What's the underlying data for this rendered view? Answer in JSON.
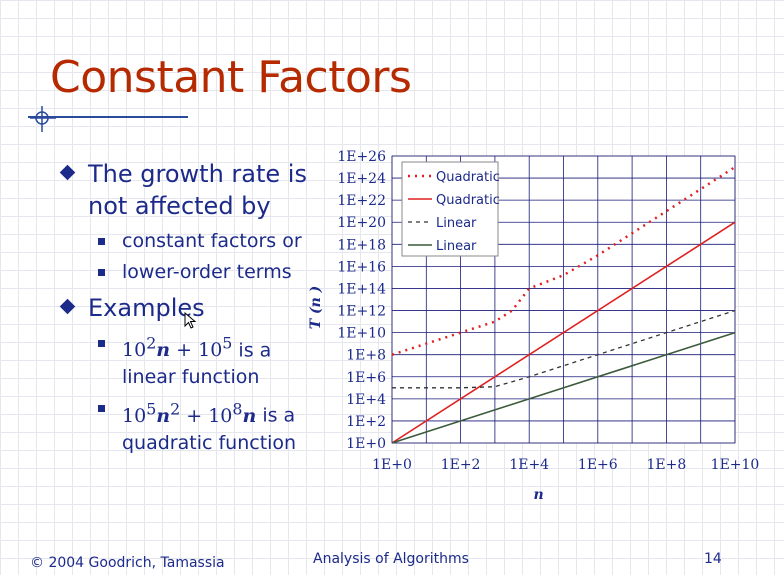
{
  "slide": {
    "title": "Constant Factors",
    "bullets": [
      {
        "text": "The growth rate is not affected by",
        "sub": [
          "constant factors or",
          "lower-order terms"
        ]
      },
      {
        "text": "Examples",
        "sub": []
      }
    ],
    "example1": {
      "base": "10",
      "exp1": "2",
      "var": "n",
      "plus": "+",
      "base2": "10",
      "exp2": "5",
      "rest": "is a linear function"
    },
    "example2": {
      "base": "10",
      "exp1": "5",
      "var": "n",
      "sq": "2",
      "plus": "+",
      "base2": "10",
      "exp2": "8",
      "var2": "n",
      "rest": "is a quadratic function"
    }
  },
  "footer": {
    "left": "© 2004 Goodrich, Tamassia",
    "center": "Analysis of Algorithms",
    "page": "14"
  },
  "colors": {
    "title": "#b52a00",
    "text": "#1c2a8a",
    "red": "#e02020",
    "darkgray": "#333333",
    "green": "#3a5a3a"
  },
  "chart_data": {
    "type": "line",
    "x_scale": "log",
    "y_scale": "log",
    "xlabel": "n",
    "ylabel": "T (n )",
    "x_ticks": [
      "1E+0",
      "1E+2",
      "1E+4",
      "1E+6",
      "1E+8",
      "1E+10"
    ],
    "y_ticks": [
      "1E+0",
      "1E+2",
      "1E+4",
      "1E+6",
      "1E+8",
      "1E+10",
      "1E+12",
      "1E+14",
      "1E+16",
      "1E+18",
      "1E+20",
      "1E+22",
      "1E+24",
      "1E+26"
    ],
    "xlim_log10": [
      0,
      10
    ],
    "ylim_log10": [
      0,
      26
    ],
    "grid": true,
    "legend_position": "top-left",
    "series": [
      {
        "name": "Quadratic",
        "style": "dotted",
        "color": "#e02020",
        "x_log10": [
          0,
          1,
          2,
          3,
          3.5,
          4,
          5,
          6,
          7,
          8,
          9,
          10
        ],
        "y_log10": [
          8,
          9,
          10,
          11,
          12,
          14,
          15.2,
          17,
          19,
          21,
          23,
          25
        ]
      },
      {
        "name": "Quadratic",
        "style": "solid",
        "color": "#e02020",
        "x_log10": [
          0,
          10
        ],
        "y_log10": [
          0,
          20
        ]
      },
      {
        "name": "Linear",
        "style": "dashed",
        "color": "#333333",
        "x_log10": [
          0,
          2,
          3,
          4,
          5,
          6,
          7,
          8,
          9,
          10
        ],
        "y_log10": [
          5,
          5,
          5.1,
          6,
          7,
          8,
          9,
          10,
          11,
          12
        ]
      },
      {
        "name": "Linear",
        "style": "solid",
        "color": "#3a5a3a",
        "x_log10": [
          0,
          10
        ],
        "y_log10": [
          0,
          10
        ]
      }
    ]
  }
}
